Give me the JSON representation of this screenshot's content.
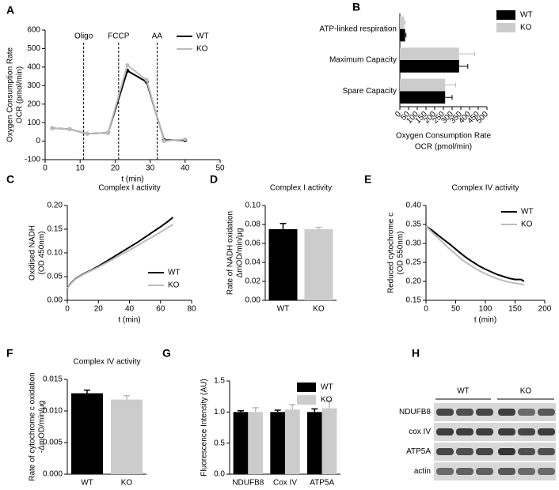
{
  "chart_data": [
    {
      "type": "line",
      "label": "A",
      "y_label": [
        "Oxygen Consumption Rate",
        "OCR (pmol/min)"
      ],
      "x_label": "t (min)",
      "x": [
        2,
        7,
        12,
        18,
        23.5,
        29,
        34,
        40
      ],
      "series": [
        {
          "name": "WT",
          "color": "#000000",
          "values": [
            70,
            65,
            40,
            45,
            380,
            320,
            5,
            5
          ]
        },
        {
          "name": "KO",
          "color": "#bbbbbb",
          "values": [
            70,
            65,
            40,
            45,
            410,
            330,
            0,
            10
          ]
        }
      ],
      "markers": true,
      "annotations": [
        {
          "x": 11,
          "text": "Oligo"
        },
        {
          "x": 21,
          "text": "FCCP"
        },
        {
          "x": 32,
          "text": "AA"
        }
      ],
      "xlim": [
        0,
        50
      ],
      "xticks": [
        0,
        10,
        20,
        30,
        40,
        50
      ],
      "ylim": [
        -100,
        600
      ],
      "yticks": [
        -100,
        0,
        100,
        200,
        300,
        400,
        500,
        600
      ],
      "legend": "upper right"
    },
    {
      "type": "bar",
      "orientation": "horizontal",
      "label": "B",
      "x_label": [
        "Oxygen Consumption Rate",
        "OCR (pmol/min)"
      ],
      "categories": [
        "ATP-linked respiration",
        "Maximum Capacity",
        "Spare Capacity"
      ],
      "series": [
        {
          "name": "WT",
          "color": "#000000",
          "values": [
            30,
            340,
            260
          ],
          "errors": [
            5,
            50,
            40
          ]
        },
        {
          "name": "KO",
          "color": "#cccccc",
          "values": [
            25,
            340,
            260
          ],
          "errors": [
            5,
            90,
            60
          ]
        }
      ],
      "xlim": [
        0,
        500
      ],
      "xticks": [
        0,
        50,
        100,
        150,
        200,
        250,
        300,
        350,
        400,
        450,
        500
      ],
      "legend": "outside right"
    },
    {
      "type": "line",
      "label": "C",
      "title": "Complex I activity",
      "y_label": [
        "Oxidised NADH",
        "(OD 450nm)"
      ],
      "x_label": "t (min)",
      "x": [
        0,
        2,
        5,
        10,
        15,
        20,
        25,
        30,
        35,
        40,
        45,
        50,
        55,
        60,
        65,
        68
      ],
      "series": [
        {
          "name": "WT",
          "color": "#000000",
          "values": [
            0.025,
            0.035,
            0.045,
            0.055,
            0.063,
            0.072,
            0.082,
            0.092,
            0.102,
            0.112,
            0.122,
            0.133,
            0.144,
            0.155,
            0.167,
            0.175
          ]
        },
        {
          "name": "KO",
          "color": "#bbbbbb",
          "values": [
            0.025,
            0.034,
            0.044,
            0.054,
            0.062,
            0.07,
            0.079,
            0.088,
            0.097,
            0.106,
            0.115,
            0.125,
            0.134,
            0.144,
            0.154,
            0.16
          ]
        }
      ],
      "xlim": [
        0,
        80
      ],
      "xticks": [
        0,
        20,
        40,
        60,
        80
      ],
      "ylim": [
        0,
        0.2
      ],
      "yticks": [
        {
          "value": 0,
          "label": "0.00"
        },
        0.05,
        {
          "value": 0.1,
          "label": "0.10"
        },
        0.15,
        {
          "value": 0.2,
          "label": "0.20"
        }
      ],
      "legend": "lower right"
    },
    {
      "type": "bar",
      "label": "D",
      "title": "Complex I activity",
      "y_label": [
        "Rate of NADH oxidation",
        "ΔmOD/min/μg"
      ],
      "categories": [
        "WT",
        "KO"
      ],
      "values": [
        0.075,
        0.075
      ],
      "errors": [
        0.006,
        0.002
      ],
      "colors": [
        "#000000",
        "#cccccc"
      ],
      "ylim": [
        0,
        0.1
      ],
      "yticks": [
        {
          "value": 0,
          "label": "0.00"
        },
        0.02,
        0.04,
        0.06,
        0.08,
        {
          "value": 0.1,
          "label": "0.10"
        }
      ]
    },
    {
      "type": "line",
      "label": "E",
      "title": "Complex IV activity",
      "y_label": [
        "Reduced cytochrome c",
        "(OD 550nm)"
      ],
      "x_label": "t (min)",
      "x": [
        0,
        10,
        20,
        30,
        40,
        50,
        60,
        70,
        80,
        90,
        100,
        110,
        120,
        130,
        140,
        150,
        160,
        165
      ],
      "series": [
        {
          "name": "WT",
          "color": "#000000",
          "values": [
            0.345,
            0.335,
            0.322,
            0.31,
            0.298,
            0.285,
            0.272,
            0.26,
            0.25,
            0.24,
            0.232,
            0.225,
            0.218,
            0.213,
            0.208,
            0.205,
            0.205,
            0.2
          ]
        },
        {
          "name": "KO",
          "color": "#bbbbbb",
          "values": [
            0.345,
            0.33,
            0.315,
            0.3,
            0.285,
            0.272,
            0.258,
            0.247,
            0.237,
            0.228,
            0.22,
            0.213,
            0.207,
            0.202,
            0.198,
            0.195,
            0.193,
            0.19
          ]
        }
      ],
      "xlim": [
        0,
        200
      ],
      "xticks": [
        0,
        50,
        100,
        150,
        200
      ],
      "ylim": [
        0.15,
        0.4
      ],
      "yticks": [
        0.15,
        {
          "value": 0.2,
          "label": "0.20"
        },
        0.25,
        {
          "value": 0.3,
          "label": "0.30"
        },
        0.35,
        {
          "value": 0.4,
          "label": "0.40"
        }
      ],
      "legend": "upper right"
    },
    {
      "type": "bar",
      "label": "F",
      "title": "Complex IV activity",
      "y_label": [
        "Rate of cytochrome c oxidation",
        "-ΔmOD/min/μg"
      ],
      "categories": [
        "WT",
        "KO"
      ],
      "values": [
        0.0128,
        0.0118
      ],
      "errors": [
        0.0005,
        0.0006
      ],
      "colors": [
        "#000000",
        "#cccccc"
      ],
      "ylim": [
        0,
        0.015
      ],
      "yticks": [
        {
          "value": 0,
          "label": "0.000"
        },
        0.005,
        {
          "value": 0.01,
          "label": "0.010"
        },
        0.015
      ]
    },
    {
      "type": "bar",
      "label": "G",
      "y_label": [
        "Fluorescence Intensity (AU)"
      ],
      "categories": [
        "NDUFB8",
        "Cox IV",
        "ATP5A"
      ],
      "series": [
        {
          "name": "WT",
          "color": "#000000",
          "values": [
            1.0,
            1.0,
            1.0
          ],
          "errors": [
            0.02,
            0.03,
            0.05
          ]
        },
        {
          "name": "KO",
          "color": "#cccccc",
          "values": [
            1.0,
            1.04,
            1.06
          ],
          "errors": [
            0.07,
            0.08,
            0.12
          ]
        }
      ],
      "ylim": [
        0,
        1.5
      ],
      "yticks": [
        {
          "value": 0,
          "label": "0.0"
        },
        0.5,
        {
          "value": 1,
          "label": "1.0"
        },
        1.5
      ],
      "legend": "upper right"
    }
  ],
  "blot": {
    "label": "H",
    "groups": [
      "WT",
      "KO"
    ],
    "rows": [
      "NDUFB8",
      "cox IV",
      "ATP5A",
      "actin"
    ]
  }
}
